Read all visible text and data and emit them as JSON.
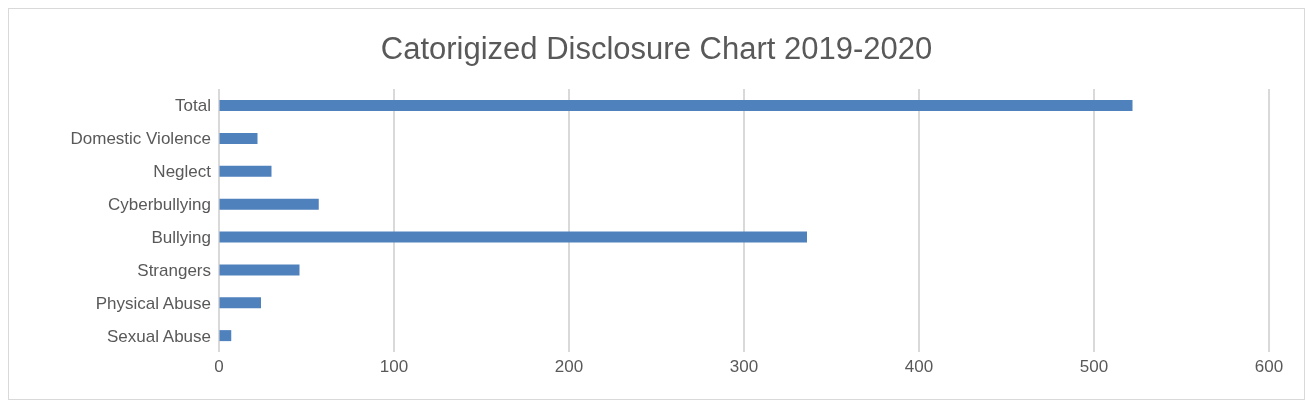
{
  "chart_data": {
    "type": "bar",
    "orientation": "horizontal",
    "title": "Catorigized Disclosure Chart 2019-2020",
    "categories": [
      "Total",
      "Domestic Violence",
      "Neglect",
      "Cyberbullying",
      "Bullying",
      "Strangers",
      "Physical Abuse",
      "Sexual Abuse"
    ],
    "values": [
      522,
      22,
      30,
      57,
      336,
      46,
      24,
      7
    ],
    "color": "#4f81bd",
    "xlim": [
      0,
      600
    ],
    "xticks": [
      0,
      100,
      200,
      300,
      400,
      500,
      600
    ],
    "grid": "x"
  }
}
